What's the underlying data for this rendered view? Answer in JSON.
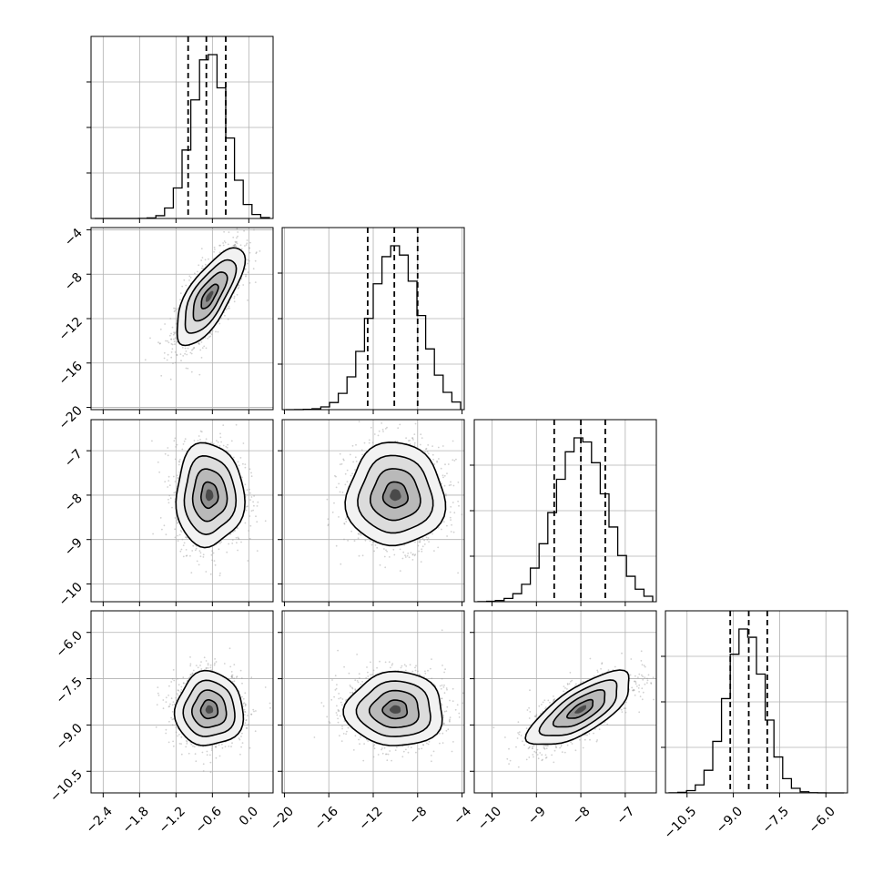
{
  "figure": {
    "title": ""
  },
  "chart_data": {
    "type": "corner",
    "colors": {
      "line": "#000000",
      "grid": "#b0b0b0",
      "scatter": "#9a9a9a"
    },
    "grid": true,
    "parameters": [
      {
        "label": "",
        "range": [
          -2.6,
          0.4
        ],
        "ticks": [
          -2.4,
          -1.8,
          -1.2,
          -0.6,
          0.0
        ],
        "tick_labels": [
          "-2.4",
          "-1.8",
          "-1.2",
          "-0.6",
          "0.0"
        ],
        "median": -0.7,
        "q16": -1.0,
        "q84": -0.38,
        "std": 0.28
      },
      {
        "label": "",
        "range": [
          -20.2,
          -3.8
        ],
        "ticks": [
          -20,
          -16,
          -12,
          -8,
          -4
        ],
        "tick_labels": [
          "-20",
          "-16",
          "-12",
          "-8",
          "-4"
        ],
        "median": -10.1,
        "q16": -12.5,
        "q84": -8.0,
        "std": 2.2
      },
      {
        "label": "",
        "range": [
          -10.4,
          -6.3
        ],
        "ticks": [
          -10,
          -9,
          -8,
          -7
        ],
        "tick_labels": [
          "-10",
          "-9",
          "-8",
          "-7"
        ],
        "median": -8.0,
        "q16": -8.6,
        "q84": -7.45,
        "std": 0.58
      },
      {
        "label": "",
        "range": [
          -11.2,
          -5.3
        ],
        "ticks": [
          -10.5,
          -9.0,
          -7.5,
          -6.0
        ],
        "tick_labels": [
          "-10.5",
          "-9.0",
          "-7.5",
          "-6.0"
        ],
        "median": -8.5,
        "q16": -9.1,
        "q84": -7.9,
        "std": 0.6
      }
    ],
    "histograms": [
      {
        "param": 0,
        "bins": 20,
        "peak_x": -0.65
      },
      {
        "param": 1,
        "bins": 20,
        "peak_x": -10.0
      },
      {
        "param": 2,
        "bins": 20,
        "peak_x": -8.0
      },
      {
        "param": 3,
        "bins": 20,
        "peak_x": -8.6
      }
    ],
    "pairs": [
      {
        "x": 0,
        "y": 1,
        "center": [
          -0.65,
          -10.0
        ],
        "corr": 0.72
      },
      {
        "x": 0,
        "y": 2,
        "center": [
          -0.65,
          -8.0
        ],
        "corr": 0.0
      },
      {
        "x": 1,
        "y": 2,
        "center": [
          -10.0,
          -8.0
        ],
        "corr": 0.0
      },
      {
        "x": 0,
        "y": 3,
        "center": [
          -0.65,
          -8.5
        ],
        "corr": 0.0
      },
      {
        "x": 1,
        "y": 3,
        "center": [
          -10.0,
          -8.5
        ],
        "corr": 0.0
      },
      {
        "x": 2,
        "y": 3,
        "center": [
          -8.0,
          -8.5
        ],
        "corr": 0.72
      }
    ],
    "contour_levels_sigma": [
      0.5,
      1.0,
      1.5,
      2.0
    ]
  }
}
